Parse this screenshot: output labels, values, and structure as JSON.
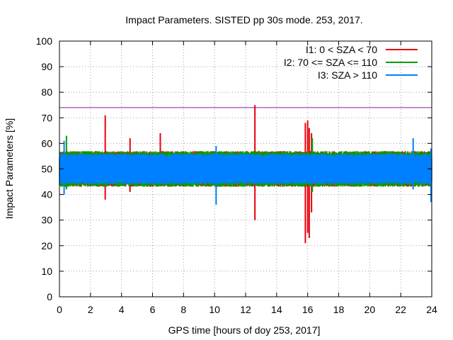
{
  "chart_data": {
    "type": "line",
    "title": "Impact Parameters. SISTED pp 30s mode. 253, 2017.",
    "xlabel": "GPS time [hours of doy 253, 2017]",
    "ylabel": "Impact Parameters [%]",
    "xlim": [
      0,
      24
    ],
    "ylim": [
      0,
      100
    ],
    "xticks": [
      0,
      2,
      4,
      6,
      8,
      10,
      12,
      14,
      16,
      18,
      20,
      22,
      24
    ],
    "yticks": [
      0,
      10,
      20,
      30,
      40,
      50,
      60,
      70,
      80,
      90,
      100
    ],
    "grid": true,
    "legend_position": "top-right",
    "threshold": {
      "value": 74,
      "color": "#8b1a9b"
    },
    "series": [
      {
        "name": "I1: 0 < SZA < 70",
        "color": "#e8000b",
        "baseline": 50,
        "typical_range": [
          43,
          57
        ],
        "spikes": [
          {
            "x": 2.95,
            "low": 38,
            "high": 71
          },
          {
            "x": 4.55,
            "low": 41,
            "high": 62
          },
          {
            "x": 6.5,
            "low": 44,
            "high": 64
          },
          {
            "x": 12.6,
            "low": 30,
            "high": 75
          },
          {
            "x": 15.85,
            "low": 21,
            "high": 68
          },
          {
            "x": 16.0,
            "low": 25,
            "high": 69
          },
          {
            "x": 16.1,
            "low": 23,
            "high": 66
          },
          {
            "x": 16.25,
            "low": 33,
            "high": 64
          }
        ]
      },
      {
        "name": "I2: 70 <= SZA <= 110",
        "color": "#00a000",
        "baseline": 50,
        "typical_range": [
          44,
          58
        ],
        "spikes": [
          {
            "x": 0.45,
            "low": 42,
            "high": 63
          },
          {
            "x": 16.3,
            "low": 41,
            "high": 62
          }
        ]
      },
      {
        "name": "I3: SZA > 110",
        "color": "#0080ff",
        "baseline": 50,
        "typical_range": [
          45,
          57
        ],
        "spikes": [
          {
            "x": 0.3,
            "low": 40,
            "high": 61
          },
          {
            "x": 10.1,
            "low": 36,
            "high": 59
          },
          {
            "x": 22.8,
            "low": 42,
            "high": 62
          },
          {
            "x": 23.95,
            "low": 37,
            "high": 58
          }
        ]
      }
    ]
  }
}
